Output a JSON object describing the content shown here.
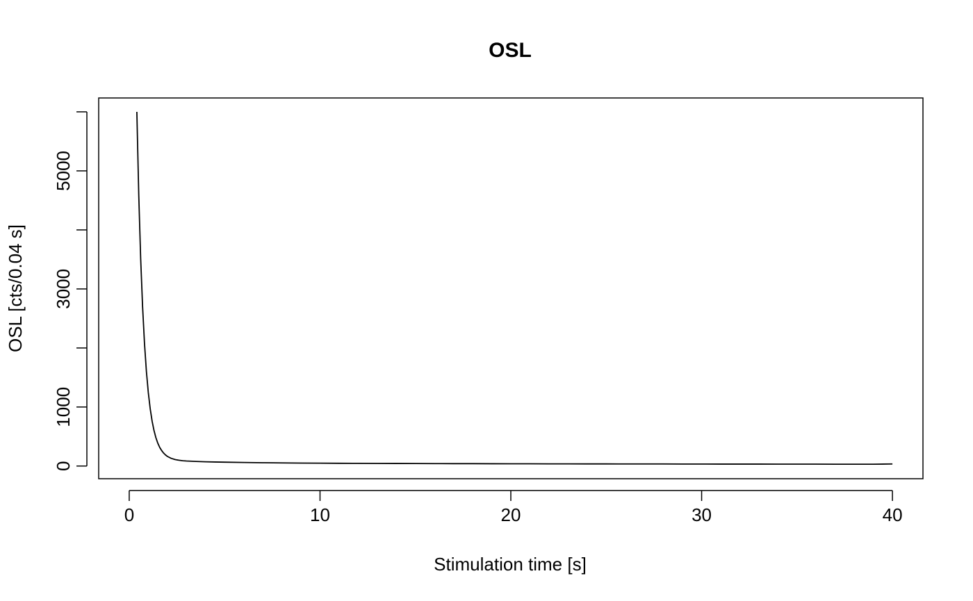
{
  "chart_data": {
    "type": "line",
    "title": "OSL",
    "xlabel": "Stimulation time [s]",
    "ylabel": "OSL [cts/0.04 s]",
    "xlim": [
      -1.6,
      41.6
    ],
    "ylim": [
      -215,
      6235
    ],
    "x_ticks": [
      0,
      10,
      20,
      30,
      40
    ],
    "x_tick_labels": [
      "0",
      "10",
      "20",
      "30",
      "40"
    ],
    "y_ticks": [
      0,
      1000,
      2000,
      3000,
      4000,
      5000,
      6000
    ],
    "y_tick_labels": [
      "0",
      "1000",
      "",
      "3000",
      "",
      "5000",
      ""
    ],
    "grid": false,
    "legend": "none",
    "line_color": "#000000",
    "series": [
      {
        "x": [
          0.4,
          0.5,
          0.6,
          0.7,
          0.8,
          0.9,
          1.0,
          1.1,
          1.2,
          1.3,
          1.4,
          1.5,
          1.6,
          1.7,
          1.8,
          1.9,
          2.0,
          2.2,
          2.4,
          2.6,
          2.8,
          3.0,
          3.5,
          4.0,
          4.5,
          5.0,
          6.0,
          7.0,
          8.0,
          9.0,
          10.0,
          11.0,
          12.0,
          13.0,
          14.0,
          15.0,
          16.0,
          17.0,
          18.0,
          19.0,
          20.0,
          21.0,
          22.0,
          23.0,
          24.0,
          25.0,
          26.0,
          27.0,
          28.0,
          29.0,
          30.0,
          31.0,
          32.0,
          33.0,
          34.0,
          35.0,
          36.0,
          37.0,
          38.0,
          39.0,
          40.0
        ],
        "y": [
          6000,
          4590,
          3515,
          2705,
          2080,
          1605,
          1245,
          970,
          760,
          600,
          478,
          385,
          315,
          262,
          220,
          188,
          163,
          130,
          110,
          98,
          90,
          85,
          78,
          72,
          68,
          65,
          60,
          56,
          53,
          50,
          48,
          46,
          45,
          44,
          43,
          42,
          41,
          40,
          40,
          39,
          38,
          38,
          37,
          37,
          36,
          36,
          35,
          35,
          35,
          34,
          34,
          33,
          33,
          33,
          32,
          32,
          32,
          31,
          31,
          31,
          35
        ]
      }
    ]
  }
}
